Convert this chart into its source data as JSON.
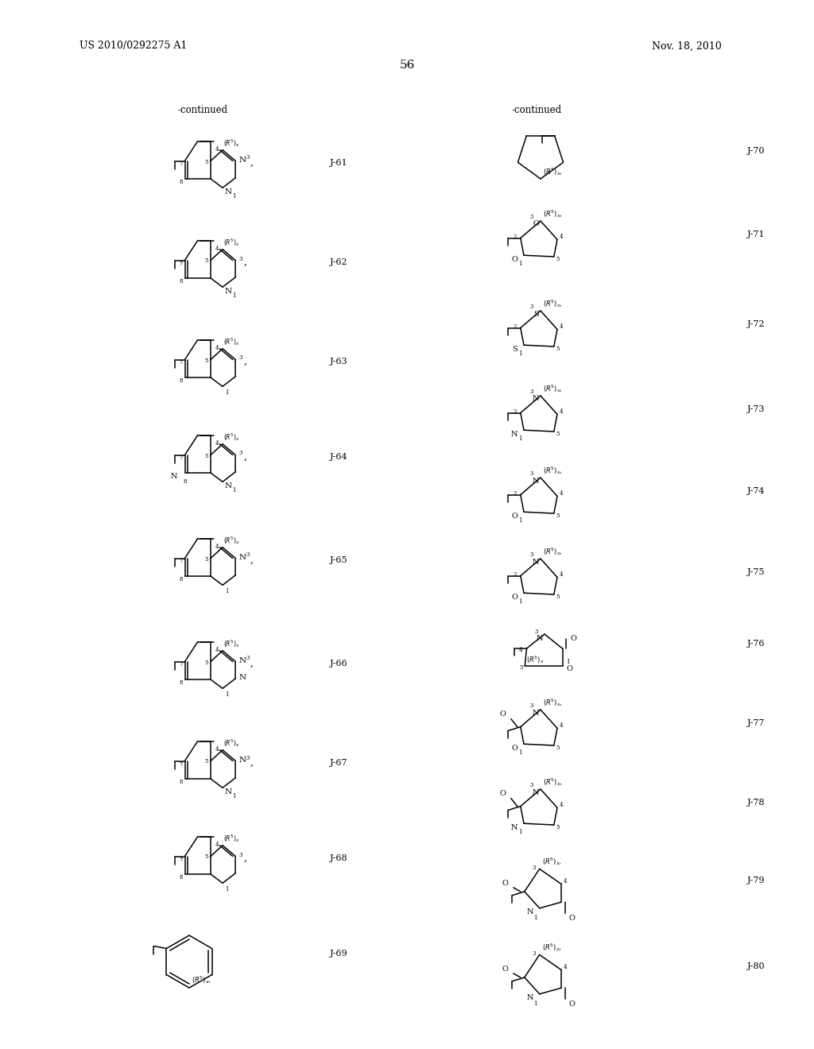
{
  "page_number": "56",
  "patent_number": "US 2010/0292275 A1",
  "patent_date": "Nov. 18, 2010",
  "background_color": "#ffffff",
  "text_color": "#000000",
  "continued_left": "-continued",
  "continued_right": "-continued"
}
